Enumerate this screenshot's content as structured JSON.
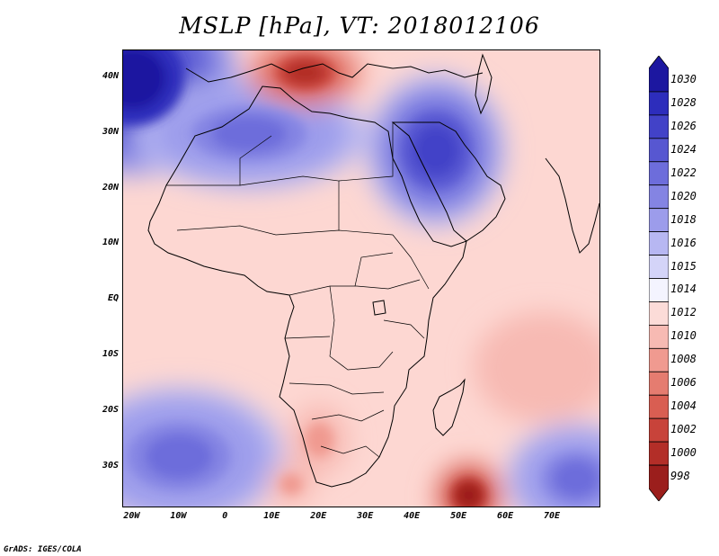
{
  "title": "MSLP [hPa], VT: 2018012106",
  "credit": "GrADS: IGES/COLA",
  "map": {
    "lon_range": [
      -22,
      80
    ],
    "lat_range": [
      -37,
      45
    ],
    "lat_labels": [
      {
        "lat": 40,
        "text": "40N"
      },
      {
        "lat": 30,
        "text": "30N"
      },
      {
        "lat": 20,
        "text": "20N"
      },
      {
        "lat": 10,
        "text": "10N"
      },
      {
        "lat": 0,
        "text": "EQ"
      },
      {
        "lat": -10,
        "text": "10S"
      },
      {
        "lat": -20,
        "text": "20S"
      },
      {
        "lat": -30,
        "text": "30S"
      }
    ],
    "lon_labels": [
      {
        "lon": -20,
        "text": "20W"
      },
      {
        "lon": -10,
        "text": "10W"
      },
      {
        "lon": 0,
        "text": "0"
      },
      {
        "lon": 10,
        "text": "10E"
      },
      {
        "lon": 20,
        "text": "20E"
      },
      {
        "lon": 30,
        "text": "30E"
      },
      {
        "lon": 40,
        "text": "40E"
      },
      {
        "lon": 50,
        "text": "50E"
      },
      {
        "lon": 60,
        "text": "60E"
      },
      {
        "lon": 70,
        "text": "70E"
      }
    ],
    "pressure_features": [
      {
        "name": "high-atlantic-azores",
        "lon": -20,
        "lat": 40,
        "rx": 18,
        "ry": 14,
        "value": 1030
      },
      {
        "name": "high-sahara",
        "lon": 5,
        "lat": 30,
        "rx": 20,
        "ry": 8,
        "value": 1022
      },
      {
        "name": "high-arabia",
        "lon": 45,
        "lat": 27,
        "rx": 12,
        "ry": 11,
        "value": 1026
      },
      {
        "name": "high-south-atlantic",
        "lon": -10,
        "lat": -28,
        "rx": 18,
        "ry": 10,
        "value": 1022
      },
      {
        "name": "high-south-indian",
        "lon": 75,
        "lat": -32,
        "rx": 12,
        "ry": 8,
        "value": 1022
      },
      {
        "name": "low-mediterranean",
        "lon": 17,
        "lat": 41,
        "rx": 10,
        "ry": 5,
        "value": 1000
      },
      {
        "name": "low-southern-indian",
        "lon": 52,
        "lat": -35,
        "rx": 6,
        "ry": 5,
        "value": 998
      },
      {
        "name": "low-kalahari",
        "lon": 20,
        "lat": -25,
        "rx": 5,
        "ry": 5,
        "value": 1008
      },
      {
        "name": "low-south-africa-west",
        "lon": 14,
        "lat": -33,
        "rx": 4,
        "ry": 3,
        "value": 1008
      },
      {
        "name": "low-indian-ocean",
        "lon": 68,
        "lat": -12,
        "rx": 12,
        "ry": 8,
        "value": 1009
      }
    ]
  },
  "colorbar": {
    "levels": [
      "1030",
      "1028",
      "1026",
      "1024",
      "1022",
      "1020",
      "1018",
      "1016",
      "1015",
      "1014",
      "1012",
      "1010",
      "1008",
      "1006",
      "1004",
      "1002",
      "1000",
      "998"
    ],
    "colors": [
      "#1c17a0",
      "#2d2dbc",
      "#4242c8",
      "#5757d1",
      "#6d6ddb",
      "#8484e3",
      "#9c9ceb",
      "#b7b7f2",
      "#d4d4f8",
      "#f4f4ff",
      "#fcdcd8",
      "#f7bab3",
      "#f09a90",
      "#e57c70",
      "#d95e52",
      "#c8433a",
      "#b32e28",
      "#9b1e1c"
    ]
  }
}
